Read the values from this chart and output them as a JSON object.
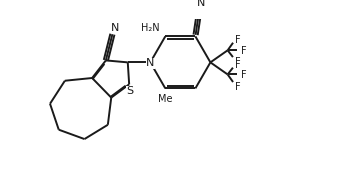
{
  "background_color": "#ffffff",
  "line_color": "#1a1a1a",
  "line_width": 1.4,
  "font_size": 7.5,
  "figsize": [
    3.49,
    1.91
  ],
  "dpi": 100,
  "xlim": [
    0,
    10.5
  ],
  "ylim": [
    0,
    5.7
  ]
}
